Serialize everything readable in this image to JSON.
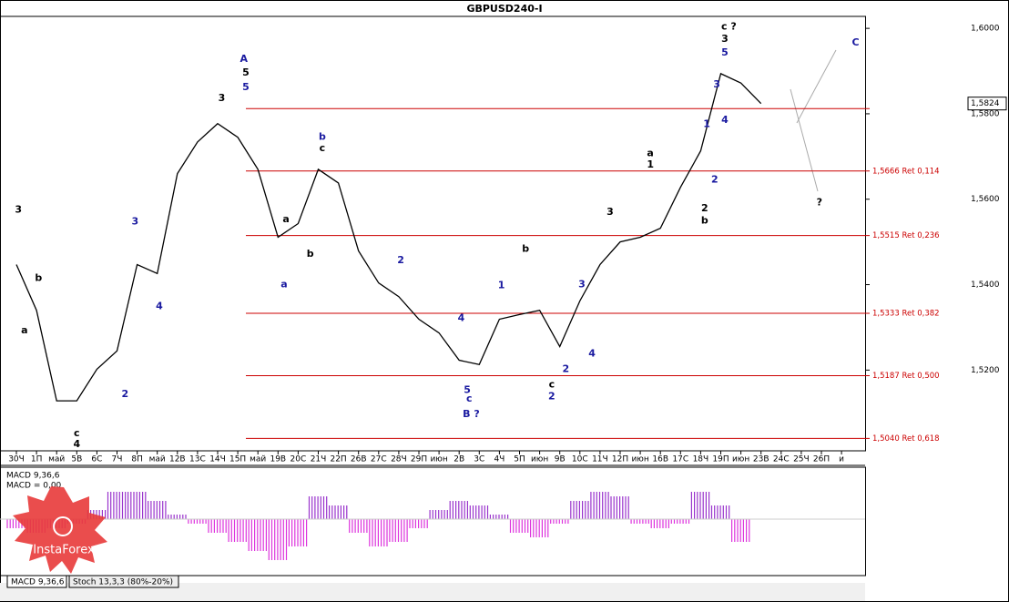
{
  "chart_data": [
    {
      "type": "line",
      "title": "GBPUSD240-I",
      "categories": [
        "30Ч",
        "1П",
        "май",
        "5В",
        "6С",
        "7Ч",
        "8П",
        "май",
        "12В",
        "13С",
        "14Ч",
        "15П",
        "май",
        "19В",
        "20С",
        "21Ч",
        "22П",
        "26В",
        "27С",
        "28Ч",
        "29П",
        "июн",
        "2В",
        "3С",
        "4Ч",
        "5П",
        "июн",
        "9В",
        "10С",
        "11Ч",
        "12П",
        "июн",
        "16В",
        "17С",
        "18Ч",
        "19П",
        "июн",
        "23В",
        "24С",
        "25Ч",
        "26П",
        "и"
      ],
      "series": [
        {
          "name": "GBPUSD240-I",
          "color": "#000000",
          "values": [
            1.5447,
            1.534,
            1.5128,
            1.5128,
            1.5202,
            1.5245,
            1.5447,
            1.5426,
            1.566,
            1.5734,
            1.5777,
            1.5745,
            1.567,
            1.5511,
            1.5543,
            1.567,
            1.5638,
            1.5479,
            1.5404,
            1.5372,
            1.5319,
            1.5287,
            1.5223,
            1.5213,
            1.5319,
            1.533,
            1.534,
            1.5255,
            1.5362,
            1.5447,
            1.55,
            1.5511,
            1.5532,
            1.5628,
            1.5713,
            1.5894,
            1.5872,
            1.5824,
            null,
            null,
            null,
            null
          ]
        }
      ],
      "ylim": [
        1.5011,
        1.6028
      ],
      "yticks": [
        {
          "value": 1.52,
          "label": "1,5200"
        },
        {
          "value": 1.54,
          "label": "1,5400"
        },
        {
          "value": 1.56,
          "label": "1,5600"
        },
        {
          "value": 1.58,
          "label": "1,5800"
        },
        {
          "value": 1.6,
          "label": "1,6000"
        }
      ],
      "last_price": {
        "value": 1.5824,
        "label": "1,5824"
      },
      "levels": [
        {
          "value": 1.5812
        },
        {
          "value": 1.5666,
          "label": "1,5666 Ret 0,114"
        },
        {
          "value": 1.5515,
          "label": "1,5515 Ret 0,236"
        },
        {
          "value": 1.5333,
          "label": "1,5333 Ret 0,382"
        },
        {
          "value": 1.5187,
          "label": "1,5187 Ret 0,500"
        },
        {
          "value": 1.504,
          "label": "1,5040 Ret 0,618"
        }
      ],
      "annotations": [
        {
          "text": "A",
          "color": "#1a1aa0",
          "x": 11.3,
          "y": 1.5928
        },
        {
          "text": "5",
          "color": "#000000",
          "x": 11.4,
          "y": 1.5896
        },
        {
          "text": "5",
          "color": "#1a1aa0",
          "x": 11.4,
          "y": 1.5862
        },
        {
          "text": "3",
          "color": "#000000",
          "x": 10.2,
          "y": 1.5836
        },
        {
          "text": "B ?",
          "color": "#1a1aa0",
          "x": 22.6,
          "y": 1.5096
        },
        {
          "text": "c",
          "color": "#1a1aa0",
          "x": 22.5,
          "y": 1.5132
        },
        {
          "text": "5",
          "color": "#1a1aa0",
          "x": 22.4,
          "y": 1.5153
        },
        {
          "text": "C",
          "color": "#1a1aa0",
          "x": 41.7,
          "y": 1.5966
        },
        {
          "text": "?",
          "color": "#000000",
          "x": 39.9,
          "y": 1.5592
        },
        {
          "text": "c  ?",
          "color": "#000000",
          "x": 35.4,
          "y": 1.6004
        },
        {
          "text": "3",
          "color": "#000000",
          "x": 35.2,
          "y": 1.5975
        },
        {
          "text": "5",
          "color": "#1a1aa0",
          "x": 35.2,
          "y": 1.5943
        },
        {
          "text": "a",
          "color": "#000000",
          "x": 31.5,
          "y": 1.5707
        },
        {
          "text": "1",
          "color": "#000000",
          "x": 31.5,
          "y": 1.5681
        },
        {
          "text": "b",
          "color": "#1a1aa0",
          "x": 15.2,
          "y": 1.5745
        },
        {
          "text": "c",
          "color": "#000000",
          "x": 15.2,
          "y": 1.5719
        },
        {
          "text": "b",
          "color": "#000000",
          "x": 25.3,
          "y": 1.5483
        },
        {
          "text": "c",
          "color": "#000000",
          "x": 26.6,
          "y": 1.5166
        },
        {
          "text": "2",
          "color": "#1a1aa0",
          "x": 26.6,
          "y": 1.5138
        },
        {
          "text": "3",
          "color": "#000000",
          "x": 0.1,
          "y": 1.5575
        },
        {
          "text": "b",
          "color": "#000000",
          "x": 1.1,
          "y": 1.5415
        },
        {
          "text": "a",
          "color": "#000000",
          "x": 0.4,
          "y": 1.5292
        },
        {
          "text": "c",
          "color": "#000000",
          "x": 3.0,
          "y": 1.5051
        },
        {
          "text": "4",
          "color": "#000000",
          "x": 3.0,
          "y": 1.5026
        },
        {
          "text": "2",
          "color": "#1a1aa0",
          "x": 5.4,
          "y": 1.5143
        },
        {
          "text": "3",
          "color": "#1a1aa0",
          "x": 5.9,
          "y": 1.5547
        },
        {
          "text": "4",
          "color": "#1a1aa0",
          "x": 7.1,
          "y": 1.5349
        },
        {
          "text": "a",
          "color": "#000000",
          "x": 13.4,
          "y": 1.5553
        },
        {
          "text": "b",
          "color": "#000000",
          "x": 14.6,
          "y": 1.5472
        },
        {
          "text": "a",
          "color": "#1a1aa0",
          "x": 13.3,
          "y": 1.54
        },
        {
          "text": "2",
          "color": "#1a1aa0",
          "x": 19.1,
          "y": 1.5457
        },
        {
          "text": "4",
          "color": "#1a1aa0",
          "x": 22.1,
          "y": 1.5321
        },
        {
          "text": "1",
          "color": "#1a1aa0",
          "x": 24.1,
          "y": 1.5398
        },
        {
          "text": "3",
          "color": "#1a1aa0",
          "x": 28.1,
          "y": 1.54
        },
        {
          "text": "4",
          "color": "#1a1aa0",
          "x": 28.6,
          "y": 1.5238
        },
        {
          "text": "2",
          "color": "#1a1aa0",
          "x": 27.3,
          "y": 1.5202
        },
        {
          "text": "3",
          "color": "#000000",
          "x": 29.5,
          "y": 1.557
        },
        {
          "text": "2",
          "color": "#000000",
          "x": 34.2,
          "y": 1.5578
        },
        {
          "text": "b",
          "color": "#000000",
          "x": 34.2,
          "y": 1.5549
        },
        {
          "text": "1",
          "color": "#1a1aa0",
          "x": 34.3,
          "y": 1.5775
        },
        {
          "text": "4",
          "color": "#1a1aa0",
          "x": 35.2,
          "y": 1.5785
        },
        {
          "text": "3",
          "color": "#1a1aa0",
          "x": 34.8,
          "y": 1.5868
        },
        {
          "text": "2",
          "color": "#1a1aa0",
          "x": 34.7,
          "y": 1.5645
        }
      ]
    },
    {
      "type": "bar",
      "title": "MACD 9,36,6",
      "subtitle": "MACD = 0,00",
      "values": [
        -10,
        -15,
        -10,
        -5,
        10,
        30,
        30,
        20,
        5,
        -5,
        -15,
        -25,
        -35,
        -45,
        -30,
        25,
        15,
        -15,
        -30,
        -25,
        -10,
        10,
        20,
        15,
        5,
        -15,
        -20,
        -5,
        20,
        30,
        25,
        -5,
        -10,
        -5,
        30,
        15,
        -25
      ],
      "positive_color": "#9933cc",
      "negative_color": "#dd33dd",
      "ylim": [
        -50,
        50
      ]
    },
    {
      "type": "tabs",
      "tabs": [
        "MACD 9,36,6",
        "Stoch 13,3,3 (80%-20%)"
      ],
      "logo": "InstaForex"
    }
  ]
}
